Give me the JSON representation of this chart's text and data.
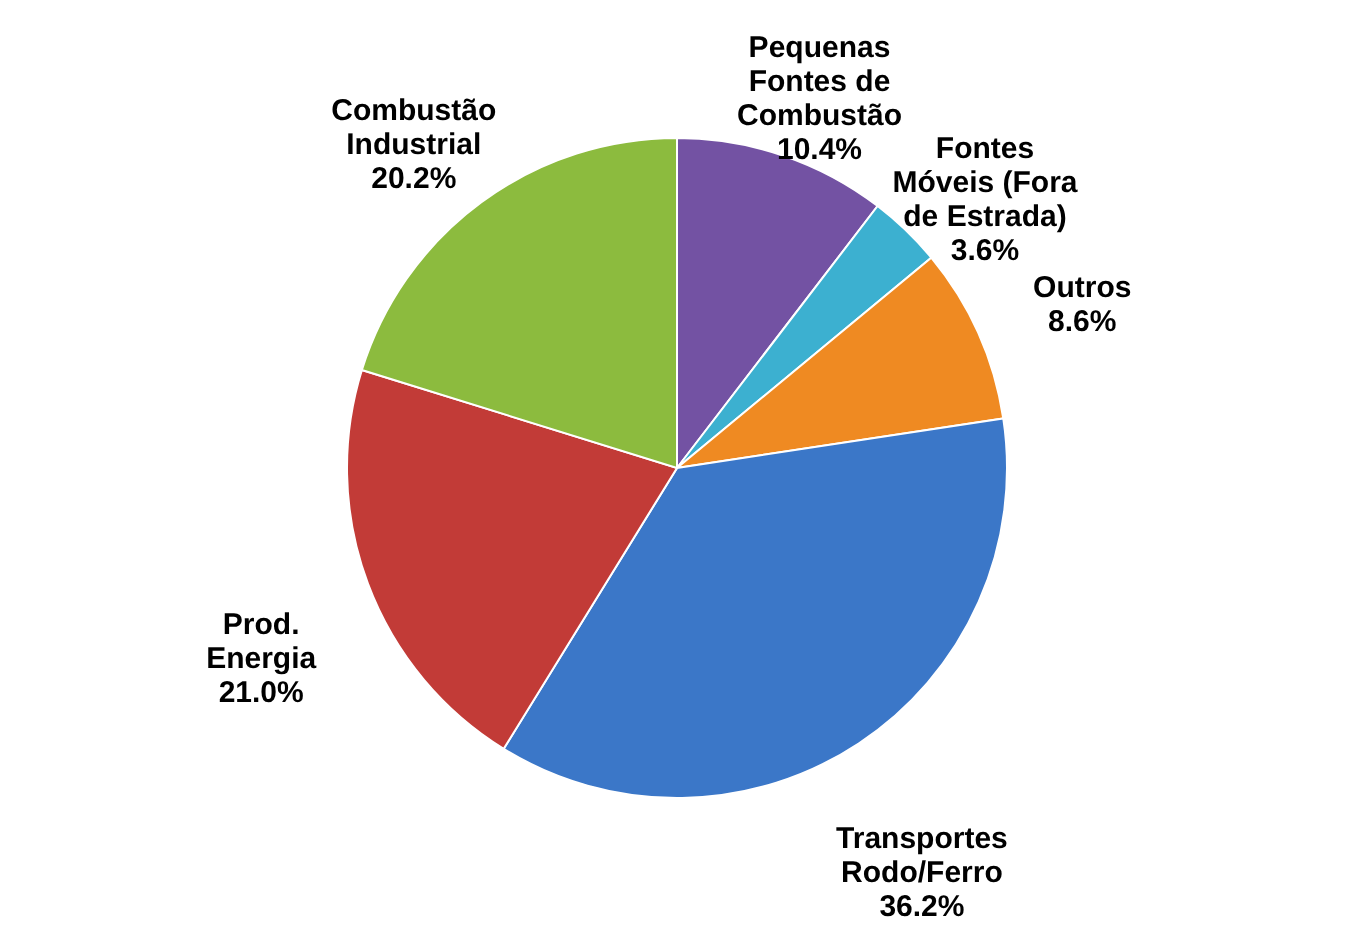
{
  "chart_data": {
    "type": "pie",
    "categories": [
      "Pequenas Fontes de Combustão",
      "Fontes Móveis (Fora de Estrada)",
      "Outros",
      "Transportes Rodo/Ferro",
      "Prod. Energia",
      "Combustão Industrial"
    ],
    "values": [
      10.4,
      3.6,
      8.6,
      36.2,
      21.0,
      20.2
    ],
    "value_labels": [
      "10.4%",
      "3.6%",
      "8.6%",
      "36.2%",
      "21.0%",
      "20.2%"
    ],
    "colors": [
      "#7352a3",
      "#3cb0d0",
      "#ef8a22",
      "#3b77c8",
      "#c23b37",
      "#8cbb3e"
    ],
    "legend": false
  }
}
